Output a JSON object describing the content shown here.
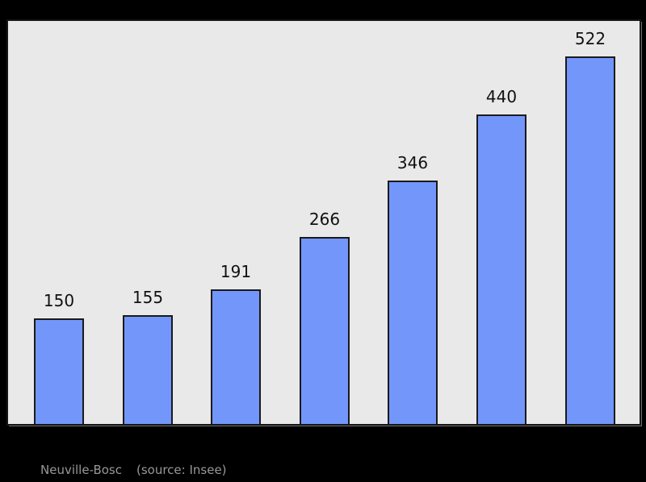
{
  "chart_data": {
    "type": "bar",
    "title": "",
    "xlabel": "",
    "ylabel": "",
    "categories": [
      "",
      "",
      "",
      "",
      "",
      "",
      ""
    ],
    "values": [
      150,
      155,
      191,
      266,
      346,
      440,
      522
    ],
    "value_labels": [
      "150",
      "155",
      "191",
      "266",
      "346",
      "440",
      "522"
    ],
    "ylim": [
      0,
      572
    ],
    "grid": false,
    "legend_position": "none",
    "data_labels_shown": true,
    "bar_color": "#7396fa",
    "bar_border_color": "#1a1a1a",
    "plot_background": "#e9e9e9",
    "page_background": "#000000",
    "value_label_color": "#111111"
  },
  "caption": {
    "name": "Neuville-Bosc",
    "source": "(source: Insee)",
    "color": "#989898"
  }
}
